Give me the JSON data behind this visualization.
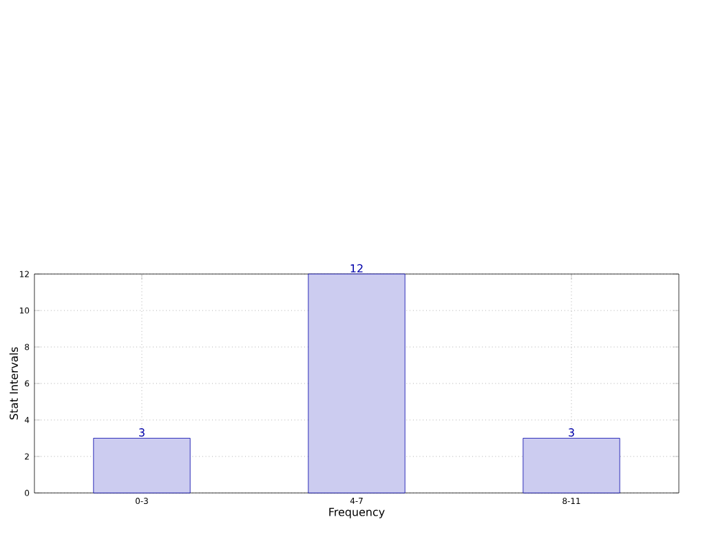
{
  "chart_data": {
    "type": "bar",
    "xlabel": "Frequency",
    "ylabel": "Stat Intervals",
    "categories": [
      "0-3",
      "4-7",
      "8-11"
    ],
    "values": [
      3,
      12,
      3
    ],
    "color": "#ccccf0",
    "ylim": [
      0,
      12
    ],
    "yticks": [
      0,
      2,
      4,
      6,
      8,
      10,
      12
    ],
    "grid": true,
    "data_labels": true
  }
}
